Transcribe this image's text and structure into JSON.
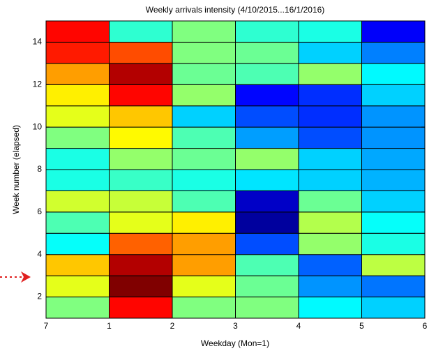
{
  "chart_data": {
    "type": "heatmap",
    "title": "Weekly arrivals intensity (4/10/2015...16/1/2016)",
    "xlabel": "Weekday (Mon=1)",
    "ylabel": "Week number (elapsed)",
    "xticks": [
      7,
      1,
      2,
      3,
      4,
      5,
      6
    ],
    "ylim": [
      1,
      15
    ],
    "yticks": [
      2,
      4,
      6,
      8,
      10,
      12,
      14
    ],
    "colormap": "jet",
    "clim": [
      0,
      1
    ],
    "z": [
      [
        0.5,
        0.87,
        0.5,
        0.5,
        0.37,
        0.33
      ],
      [
        0.6,
        1.0,
        0.6,
        0.48,
        0.27,
        0.24
      ],
      [
        0.68,
        0.95,
        0.72,
        0.45,
        0.22,
        0.56
      ],
      [
        0.38,
        0.78,
        0.72,
        0.2,
        0.52,
        0.4
      ],
      [
        0.45,
        0.6,
        0.64,
        0.03,
        0.55,
        0.38
      ],
      [
        0.58,
        0.57,
        0.45,
        0.07,
        0.48,
        0.33
      ],
      [
        0.4,
        0.43,
        0.4,
        0.35,
        0.33,
        0.3
      ],
      [
        0.4,
        0.52,
        0.48,
        0.52,
        0.33,
        0.29
      ],
      [
        0.5,
        0.63,
        0.45,
        0.28,
        0.2,
        0.27
      ],
      [
        0.6,
        0.68,
        0.33,
        0.2,
        0.17,
        0.27
      ],
      [
        0.64,
        0.87,
        0.52,
        0.13,
        0.17,
        0.33
      ],
      [
        0.72,
        0.95,
        0.48,
        0.45,
        0.52,
        0.37
      ],
      [
        0.85,
        0.8,
        0.5,
        0.48,
        0.33,
        0.25
      ],
      [
        0.87,
        0.42,
        0.5,
        0.42,
        0.4,
        0.12
      ]
    ]
  }
}
